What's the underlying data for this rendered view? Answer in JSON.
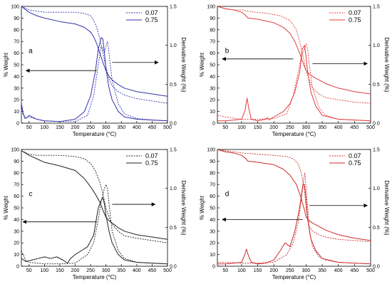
{
  "colors": {
    "a": "#3333aa",
    "b": "#e23b3b",
    "c": "#222222",
    "d": "#cc2a2a",
    "axis": "#000000"
  },
  "chart_data": [
    {
      "panel": "a",
      "type": "line",
      "letter": "a",
      "xlabel": "Temperature (°C)",
      "ylabel": "% Weight",
      "y2label": "Derivative Weight (%)",
      "xlim": [
        25,
        500
      ],
      "ylim": [
        0,
        100
      ],
      "y2lim": [
        0,
        1.5
      ],
      "xticks": [
        50,
        100,
        150,
        200,
        250,
        300,
        350,
        400,
        450,
        500
      ],
      "yticks": [
        0,
        10,
        20,
        30,
        40,
        50,
        60,
        70,
        80,
        90,
        100
      ],
      "y2ticks": [
        0.0,
        0.5,
        1.0,
        1.5
      ],
      "y2tick_labels": [
        "0.0",
        "0.5",
        "1.0",
        "1.5"
      ],
      "legend": [
        {
          "name": "0.07",
          "style": "dotted"
        },
        {
          "name": "0.75",
          "style": "solid"
        }
      ],
      "arrows": [
        {
          "from": [
            270,
            45
          ],
          "to": [
            40,
            45
          ]
        },
        {
          "from": [
            320,
            52
          ],
          "to": [
            470,
            52
          ]
        }
      ],
      "series": [
        {
          "name": "0.07",
          "kind": "weight",
          "style": "dotted",
          "x": [
            25,
            50,
            75,
            100,
            150,
            200,
            230,
            250,
            260,
            270,
            280,
            290,
            300,
            310,
            320,
            340,
            360,
            400,
            450,
            500
          ],
          "y": [
            100,
            97,
            96,
            95,
            95,
            95,
            94,
            92,
            88,
            82,
            72,
            60,
            48,
            38,
            32,
            27,
            24,
            21,
            19,
            17
          ]
        },
        {
          "name": "0.75",
          "kind": "weight",
          "style": "solid",
          "x": [
            25,
            50,
            75,
            100,
            150,
            200,
            230,
            250,
            260,
            270,
            280,
            290,
            300,
            310,
            320,
            340,
            360,
            400,
            450,
            500
          ],
          "y": [
            100,
            95,
            92,
            90,
            87,
            85,
            82,
            78,
            74,
            68,
            60,
            52,
            45,
            40,
            37,
            33,
            30,
            27,
            25,
            23
          ]
        },
        {
          "name": "0.07",
          "kind": "deriv",
          "style": "dotted",
          "x": [
            25,
            35,
            50,
            75,
            100,
            150,
            200,
            240,
            260,
            275,
            285,
            295,
            300,
            305,
            310,
            320,
            340,
            360,
            400,
            450,
            500
          ],
          "y": [
            0.26,
            0.06,
            0.08,
            0.05,
            0.03,
            0.02,
            0.02,
            0.1,
            0.35,
            0.75,
            1.0,
            0.9,
            1.0,
            1.05,
            0.9,
            0.55,
            0.25,
            0.12,
            0.06,
            0.04,
            0.03
          ]
        },
        {
          "name": "0.75",
          "kind": "deriv",
          "style": "solid",
          "x": [
            25,
            30,
            40,
            50,
            75,
            100,
            150,
            200,
            230,
            250,
            265,
            275,
            285,
            290,
            295,
            300,
            310,
            320,
            340,
            360,
            400,
            450,
            500
          ],
          "y": [
            0.25,
            0.12,
            0.06,
            0.1,
            0.05,
            0.03,
            0.02,
            0.05,
            0.15,
            0.35,
            0.65,
            0.95,
            1.1,
            1.08,
            0.9,
            0.7,
            0.45,
            0.3,
            0.15,
            0.08,
            0.05,
            0.04,
            0.03
          ]
        }
      ]
    },
    {
      "panel": "b",
      "type": "line",
      "letter": "b",
      "xlabel": "Temperature (°C)",
      "ylabel": "% Weight",
      "y2label": "Derivative Weight (%)",
      "xlim": [
        25,
        500
      ],
      "ylim": [
        0,
        100
      ],
      "y2lim": [
        0,
        1.5
      ],
      "xticks": [
        50,
        100,
        150,
        200,
        250,
        300,
        350,
        400,
        450,
        500
      ],
      "yticks": [
        0,
        10,
        20,
        30,
        40,
        50,
        60,
        70,
        80,
        90,
        100
      ],
      "y2ticks": [
        0.0,
        0.5,
        1.0,
        1.5
      ],
      "y2tick_labels": [
        "0.0",
        "0.5",
        "1.0",
        "1.5"
      ],
      "legend": [
        {
          "name": "0.07",
          "style": "dotted"
        },
        {
          "name": "0.75",
          "style": "solid"
        }
      ],
      "arrows": [
        {
          "from": [
            260,
            55
          ],
          "to": [
            40,
            55
          ]
        },
        {
          "from": [
            320,
            51
          ],
          "to": [
            490,
            51
          ]
        }
      ],
      "series": [
        {
          "name": "0.07",
          "kind": "weight",
          "style": "dotted",
          "x": [
            25,
            50,
            75,
            100,
            120,
            140,
            180,
            220,
            250,
            270,
            280,
            290,
            300,
            310,
            320,
            340,
            360,
            400,
            450,
            500
          ],
          "y": [
            100,
            98,
            97,
            97,
            96,
            95,
            94,
            92,
            88,
            80,
            70,
            58,
            45,
            37,
            30,
            25,
            22,
            20,
            18,
            17
          ]
        },
        {
          "name": "0.75",
          "kind": "weight",
          "style": "solid",
          "x": [
            25,
            50,
            75,
            100,
            110,
            120,
            150,
            200,
            230,
            250,
            265,
            280,
            290,
            300,
            310,
            320,
            340,
            360,
            400,
            450,
            500
          ],
          "y": [
            100,
            98,
            97,
            95,
            93,
            90,
            89,
            86,
            82,
            77,
            70,
            60,
            52,
            45,
            42,
            40,
            37,
            34,
            30,
            27,
            25
          ]
        },
        {
          "name": "0.07",
          "kind": "deriv",
          "style": "dotted",
          "x": [
            25,
            50,
            100,
            150,
            200,
            240,
            260,
            275,
            285,
            295,
            300,
            305,
            310,
            320,
            340,
            360,
            400,
            450,
            500
          ],
          "y": [
            0.1,
            0.08,
            0.05,
            0.05,
            0.06,
            0.12,
            0.35,
            0.65,
            0.85,
            0.95,
            1.02,
            0.95,
            0.75,
            0.45,
            0.2,
            0.1,
            0.05,
            0.04,
            0.03
          ]
        },
        {
          "name": "0.75",
          "kind": "deriv",
          "style": "solid",
          "x": [
            25,
            50,
            100,
            110,
            117,
            122,
            130,
            150,
            175,
            180,
            185,
            200,
            230,
            250,
            265,
            280,
            288,
            295,
            300,
            305,
            315,
            330,
            350,
            400,
            450,
            500
          ],
          "y": [
            0.03,
            0.03,
            0.05,
            0.15,
            0.32,
            0.2,
            0.05,
            0.03,
            0.05,
            0.07,
            0.04,
            0.08,
            0.15,
            0.25,
            0.4,
            0.65,
            0.95,
            1.0,
            0.85,
            0.65,
            0.4,
            0.22,
            0.1,
            0.05,
            0.04,
            0.03
          ]
        }
      ]
    },
    {
      "panel": "c",
      "type": "line",
      "letter": "c",
      "xlabel": "Temperature (°C)",
      "ylabel": "% Weight",
      "y2label": "Derivative Weight (%)",
      "xlim": [
        25,
        500
      ],
      "ylim": [
        0,
        100
      ],
      "y2lim": [
        0,
        1.5
      ],
      "xticks": [
        50,
        100,
        150,
        200,
        250,
        300,
        350,
        400,
        450,
        500
      ],
      "yticks": [
        0,
        10,
        20,
        30,
        40,
        50,
        60,
        70,
        80,
        90,
        100
      ],
      "y2ticks": [
        0.0,
        0.5,
        1.0,
        1.5
      ],
      "y2tick_labels": [
        "0.0",
        "0.5",
        "1.0",
        "1.5"
      ],
      "legend": [
        {
          "name": "0.07",
          "style": "dotted"
        },
        {
          "name": "0.75",
          "style": "solid"
        }
      ],
      "arrows": [
        {
          "from": [
            270,
            38
          ],
          "to": [
            30,
            38
          ]
        },
        {
          "from": [
            320,
            53
          ],
          "to": [
            460,
            53
          ]
        }
      ],
      "series": [
        {
          "name": "0.07",
          "kind": "weight",
          "style": "dotted",
          "x": [
            25,
            50,
            75,
            100,
            150,
            200,
            230,
            250,
            265,
            280,
            290,
            300,
            310,
            320,
            340,
            360,
            400,
            450,
            500
          ],
          "y": [
            99,
            96,
            95,
            95,
            95,
            94,
            92,
            88,
            82,
            72,
            62,
            50,
            42,
            36,
            30,
            26,
            24,
            22,
            20
          ]
        },
        {
          "name": "0.75",
          "kind": "weight",
          "style": "solid",
          "x": [
            25,
            50,
            75,
            100,
            150,
            200,
            230,
            250,
            265,
            280,
            290,
            300,
            310,
            320,
            340,
            360,
            400,
            450,
            500
          ],
          "y": [
            99,
            95,
            92,
            89,
            86,
            82,
            75,
            68,
            62,
            55,
            48,
            42,
            39,
            37,
            33,
            30,
            27,
            25,
            23
          ]
        },
        {
          "name": "0.07",
          "kind": "deriv",
          "style": "dotted",
          "x": [
            25,
            40,
            50,
            75,
            100,
            150,
            200,
            240,
            260,
            275,
            285,
            295,
            300,
            305,
            310,
            320,
            340,
            360,
            400,
            450,
            500
          ],
          "y": [
            0.2,
            0.07,
            0.05,
            0.04,
            0.03,
            0.03,
            0.04,
            0.15,
            0.3,
            0.6,
            0.85,
            1.0,
            1.05,
            1.0,
            0.8,
            0.45,
            0.2,
            0.1,
            0.05,
            0.04,
            0.03
          ]
        },
        {
          "name": "0.75",
          "kind": "deriv",
          "style": "solid",
          "x": [
            25,
            40,
            60,
            80,
            100,
            120,
            140,
            160,
            175,
            185,
            200,
            220,
            240,
            260,
            275,
            285,
            290,
            295,
            300,
            310,
            320,
            340,
            360,
            400,
            450,
            500
          ],
          "y": [
            0.1,
            0.06,
            0.08,
            0.1,
            0.12,
            0.1,
            0.12,
            0.08,
            0.04,
            0.1,
            0.15,
            0.2,
            0.25,
            0.4,
            0.75,
            0.85,
            0.88,
            0.8,
            0.65,
            0.45,
            0.3,
            0.15,
            0.08,
            0.05,
            0.04,
            0.03
          ]
        }
      ]
    },
    {
      "panel": "d",
      "type": "line",
      "letter": "d",
      "xlabel": "Temperature (°C)",
      "ylabel": "% Weight",
      "y2label": "Derivative Weight (%)",
      "xlim": [
        25,
        500
      ],
      "ylim": [
        0,
        100
      ],
      "y2lim": [
        0,
        1.5
      ],
      "xticks": [
        50,
        100,
        150,
        200,
        250,
        300,
        350,
        400,
        450,
        500
      ],
      "yticks": [
        0,
        10,
        20,
        30,
        40,
        50,
        60,
        70,
        80,
        90,
        100
      ],
      "y2ticks": [
        0.0,
        0.5,
        1.0,
        1.5
      ],
      "y2tick_labels": [
        "0.0",
        "0.5",
        "1.0",
        "1.5"
      ],
      "legend": [
        {
          "name": "0.07",
          "style": "dotted"
        },
        {
          "name": "0.75",
          "style": "solid"
        }
      ],
      "arrows": [
        {
          "from": [
            290,
            40
          ],
          "to": [
            40,
            40
          ]
        },
        {
          "from": [
            310,
            52
          ],
          "to": [
            490,
            52
          ]
        }
      ],
      "series": [
        {
          "name": "0.07",
          "kind": "weight",
          "style": "dotted",
          "x": [
            25,
            50,
            75,
            100,
            150,
            200,
            240,
            260,
            275,
            285,
            295,
            300,
            305,
            310,
            320,
            340,
            360,
            400,
            450,
            500
          ],
          "y": [
            100,
            99,
            98,
            97,
            96,
            95,
            94,
            92,
            88,
            80,
            65,
            50,
            40,
            34,
            30,
            27,
            25,
            23,
            22,
            21
          ]
        },
        {
          "name": "0.75",
          "kind": "weight",
          "style": "solid",
          "x": [
            25,
            50,
            75,
            100,
            110,
            120,
            150,
            200,
            230,
            250,
            270,
            285,
            295,
            300,
            310,
            320,
            340,
            360,
            400,
            450,
            500
          ],
          "y": [
            100,
            98,
            97,
            95,
            93,
            90,
            89,
            87,
            83,
            78,
            70,
            58,
            48,
            42,
            39,
            37,
            34,
            31,
            27,
            24,
            22
          ]
        },
        {
          "name": "0.07",
          "kind": "deriv",
          "style": "dotted",
          "x": [
            25,
            50,
            100,
            150,
            200,
            240,
            260,
            275,
            285,
            292,
            296,
            300,
            305,
            310,
            320,
            340,
            360,
            400,
            450,
            500
          ],
          "y": [
            0.05,
            0.05,
            0.04,
            0.04,
            0.05,
            0.15,
            0.3,
            0.55,
            0.85,
            1.1,
            1.2,
            1.0,
            0.75,
            0.45,
            0.25,
            0.12,
            0.08,
            0.05,
            0.04,
            0.03
          ]
        },
        {
          "name": "0.75",
          "kind": "deriv",
          "style": "solid",
          "x": [
            25,
            50,
            100,
            110,
            115,
            120,
            130,
            150,
            175,
            200,
            220,
            235,
            250,
            265,
            280,
            290,
            295,
            300,
            305,
            315,
            330,
            350,
            400,
            450,
            500
          ],
          "y": [
            0.03,
            0.03,
            0.05,
            0.15,
            0.22,
            0.15,
            0.05,
            0.03,
            0.04,
            0.08,
            0.2,
            0.3,
            0.25,
            0.45,
            0.75,
            1.05,
            1.05,
            0.85,
            0.6,
            0.35,
            0.2,
            0.1,
            0.05,
            0.04,
            0.03
          ]
        }
      ]
    }
  ]
}
